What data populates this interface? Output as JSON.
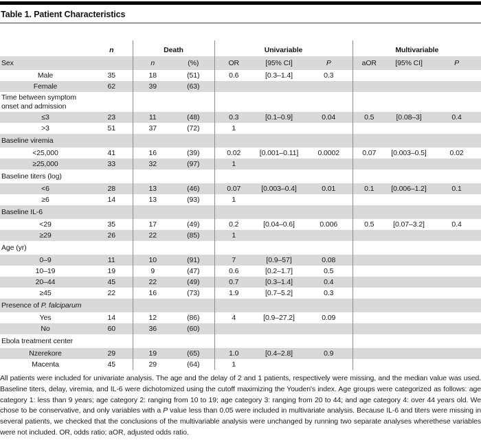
{
  "title": "Table 1. Patient Characteristics",
  "colors": {
    "row_shading": "#d9d9d9",
    "divider_line": "#8a8a8a",
    "top_bar": "#000000",
    "text": "#161616"
  },
  "table": {
    "group_headers": {
      "n": "n",
      "death": "Death",
      "univariable": "Univariable",
      "multivariable": "Multivariable"
    },
    "sub_headers": {
      "sex": "Sex",
      "n": "n",
      "pct": "(%)",
      "or": "OR",
      "ci": "[95% CI]",
      "p": "P",
      "aor": "aOR",
      "aci": "[95% CI]",
      "ap": "P"
    },
    "rows": [
      {
        "type": "item",
        "label": "Male",
        "n": "35",
        "dn": "18",
        "dpct": "(51)",
        "or": "0.6",
        "ci": "[0.3–1.4]",
        "p": "0.3",
        "aor": "",
        "aci": "",
        "ap": "",
        "shaded": false
      },
      {
        "type": "item",
        "label": "Female",
        "n": "62",
        "dn": "39",
        "dpct": "(63)",
        "or": "",
        "ci": "",
        "p": "",
        "aor": "",
        "aci": "",
        "ap": "",
        "shaded": true
      },
      {
        "type": "group",
        "label": "Time between symptom onset and admission",
        "n": "",
        "dn": "",
        "dpct": "",
        "or": "",
        "ci": "",
        "p": "",
        "aor": "",
        "aci": "",
        "ap": "",
        "shaded": false
      },
      {
        "type": "item",
        "label": "≤3",
        "n": "23",
        "dn": "11",
        "dpct": "(48)",
        "or": "0.3",
        "ci": "[0.1–0.9]",
        "p": "0.04",
        "aor": "0.5",
        "aci": "[0.08–3]",
        "ap": "0.4",
        "shaded": true
      },
      {
        "type": "item",
        "label": ">3",
        "n": "51",
        "dn": "37",
        "dpct": "(72)",
        "or": "1",
        "ci": "",
        "p": "",
        "aor": "",
        "aci": "",
        "ap": "",
        "shaded": false
      },
      {
        "type": "group",
        "label": "Baseline viremia",
        "n": "",
        "dn": "",
        "dpct": "",
        "or": "",
        "ci": "",
        "p": "",
        "aor": "",
        "aci": "",
        "ap": "",
        "shaded": true
      },
      {
        "type": "item",
        "label": "<25,000",
        "n": "41",
        "dn": "16",
        "dpct": "(39)",
        "or": "0.02",
        "ci": "[0.001–0.11]",
        "p": "0.0002",
        "aor": "0.07",
        "aci": "[0.003–0.5]",
        "ap": "0.02",
        "shaded": false
      },
      {
        "type": "item",
        "label": "≥25,000",
        "n": "33",
        "dn": "32",
        "dpct": "(97)",
        "or": "1",
        "ci": "",
        "p": "",
        "aor": "",
        "aci": "",
        "ap": "",
        "shaded": true
      },
      {
        "type": "group",
        "label": "Baseline titers (log)",
        "n": "",
        "dn": "",
        "dpct": "",
        "or": "",
        "ci": "",
        "p": "",
        "aor": "",
        "aci": "",
        "ap": "",
        "shaded": false
      },
      {
        "type": "item",
        "label": "<6",
        "n": "28",
        "dn": "13",
        "dpct": "(46)",
        "or": "0.07",
        "ci": "[0.003–0.4]",
        "p": "0.01",
        "aor": "0.1",
        "aci": "[0.006–1.2]",
        "ap": "0.1",
        "shaded": true
      },
      {
        "type": "item",
        "label": "≥6",
        "n": "14",
        "dn": "13",
        "dpct": "(93)",
        "or": "1",
        "ci": "",
        "p": "",
        "aor": "",
        "aci": "",
        "ap": "",
        "shaded": false
      },
      {
        "type": "group",
        "label": "Baseline IL-6",
        "n": "",
        "dn": "",
        "dpct": "",
        "or": "",
        "ci": "",
        "p": "",
        "aor": "",
        "aci": "",
        "ap": "",
        "shaded": true
      },
      {
        "type": "item",
        "label": "<29",
        "n": "35",
        "dn": "17",
        "dpct": "(49)",
        "or": "0.2",
        "ci": "[0.04–0.6]",
        "p": "0.006",
        "aor": "0.5",
        "aci": "[0.07–3.2]",
        "ap": "0.4",
        "shaded": false
      },
      {
        "type": "item",
        "label": "≥29",
        "n": "26",
        "dn": "22",
        "dpct": "(85)",
        "or": "1",
        "ci": "",
        "p": "",
        "aor": "",
        "aci": "",
        "ap": "",
        "shaded": true
      },
      {
        "type": "group",
        "label": "Age (yr)",
        "n": "",
        "dn": "",
        "dpct": "",
        "or": "",
        "ci": "",
        "p": "",
        "aor": "",
        "aci": "",
        "ap": "",
        "shaded": false
      },
      {
        "type": "item",
        "label": "0–9",
        "n": "11",
        "dn": "10",
        "dpct": "(91)",
        "or": "7",
        "ci": "[0.9–57]",
        "p": "0.08",
        "aor": "",
        "aci": "",
        "ap": "",
        "shaded": true
      },
      {
        "type": "item",
        "label": "10–19",
        "n": "19",
        "dn": "9",
        "dpct": "(47)",
        "or": "0.6",
        "ci": "[0.2–1.7]",
        "p": "0.5",
        "aor": "",
        "aci": "",
        "ap": "",
        "shaded": false
      },
      {
        "type": "item",
        "label": "20–44",
        "n": "45",
        "dn": "22",
        "dpct": "(49)",
        "or": "0.7",
        "ci": "[0.3–1.4]",
        "p": "0.4",
        "aor": "",
        "aci": "",
        "ap": "",
        "shaded": true
      },
      {
        "type": "item",
        "label": "≥45",
        "n": "22",
        "dn": "16",
        "dpct": "(73)",
        "or": "1.9",
        "ci": "[0.7–5.2]",
        "p": "0.3",
        "aor": "",
        "aci": "",
        "ap": "",
        "shaded": false
      },
      {
        "type": "group",
        "label": "Presence of ",
        "label_italic": "P. falciparum",
        "n": "",
        "dn": "",
        "dpct": "",
        "or": "",
        "ci": "",
        "p": "",
        "aor": "",
        "aci": "",
        "ap": "",
        "shaded": true
      },
      {
        "type": "item",
        "label": "Yes",
        "n": "14",
        "dn": "12",
        "dpct": "(86)",
        "or": "4",
        "ci": "[0.9–27.2]",
        "p": "0.09",
        "aor": "",
        "aci": "",
        "ap": "",
        "shaded": false
      },
      {
        "type": "item",
        "label": "No",
        "n": "60",
        "dn": "36",
        "dpct": "(60)",
        "or": "",
        "ci": "",
        "p": "",
        "aor": "",
        "aci": "",
        "ap": "",
        "shaded": true
      },
      {
        "type": "group",
        "label": "Ebola treatment center",
        "n": "",
        "dn": "",
        "dpct": "",
        "or": "",
        "ci": "",
        "p": "",
        "aor": "",
        "aci": "",
        "ap": "",
        "shaded": false
      },
      {
        "type": "item",
        "label": "Nzerekore",
        "n": "29",
        "dn": "19",
        "dpct": "(65)",
        "or": "1.0",
        "ci": "[0.4–2.8]",
        "p": "0.9",
        "aor": "",
        "aci": "",
        "ap": "",
        "shaded": true
      },
      {
        "type": "item",
        "label": "Macenta",
        "n": "45",
        "dn": "29",
        "dpct": "(64)",
        "or": "1",
        "ci": "",
        "p": "",
        "aor": "",
        "aci": "",
        "ap": "",
        "shaded": false
      }
    ]
  },
  "footnote": {
    "parts": [
      {
        "text": "All patients were included for univariate analysis. The age and the delay of 2 and 1 patients, respectively were missing, and the median value was used. Baseline titers, delay, viremia, and IL-6 were dichotomized using the cutoff maximizing the Youden's index. Age groups were categorized as follows: age category 1: less than 9 years; age category 2: ranging from 10 to 19; age category 3: ranging from 20 to 44; and age category 4: over 44 years old. We chose to be conservative, and only variables with a ",
        "italic": false
      },
      {
        "text": "P",
        "italic": true
      },
      {
        "text": " value less than 0.05 were included in multivariate analysis. Because IL-6 and titers were missing in several patients, we checked that the conclusions of the multivariable analysis were unchanged by running two separate analyses wherethese variables were not included. OR, odds ratio; aOR, adjusted odds ratio.",
        "italic": false
      }
    ]
  }
}
